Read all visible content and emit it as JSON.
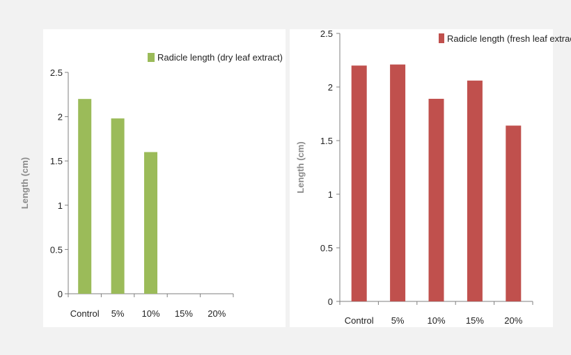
{
  "chart_data": [
    {
      "type": "bar",
      "categories": [
        "Control",
        "5%",
        "10%",
        "15%",
        "20%"
      ],
      "series": [
        {
          "name": "Radicle length (dry leaf extract)",
          "values": [
            2.2,
            1.98,
            1.6,
            0,
            0
          ],
          "color": "#9bbb59"
        }
      ],
      "ylabel": "Length (cm)",
      "ylim": [
        0,
        2.5
      ],
      "yticks": [
        "0",
        "0.5",
        "1",
        "1.5",
        "2",
        "2.5"
      ],
      "legend": "top-right",
      "grid": false
    },
    {
      "type": "bar",
      "categories": [
        "Control",
        "5%",
        "10%",
        "15%",
        "20%"
      ],
      "series": [
        {
          "name": "Radicle length (fresh leaf extract)",
          "values": [
            2.2,
            2.21,
            1.89,
            2.06,
            1.64
          ],
          "color": "#c0504d"
        }
      ],
      "ylabel": "Length (cm)",
      "ylim": [
        0,
        2.5
      ],
      "yticks": [
        "0",
        "0.5",
        "1",
        "1.5",
        "2",
        "2.5"
      ],
      "legend": "top-right",
      "grid": false
    }
  ]
}
